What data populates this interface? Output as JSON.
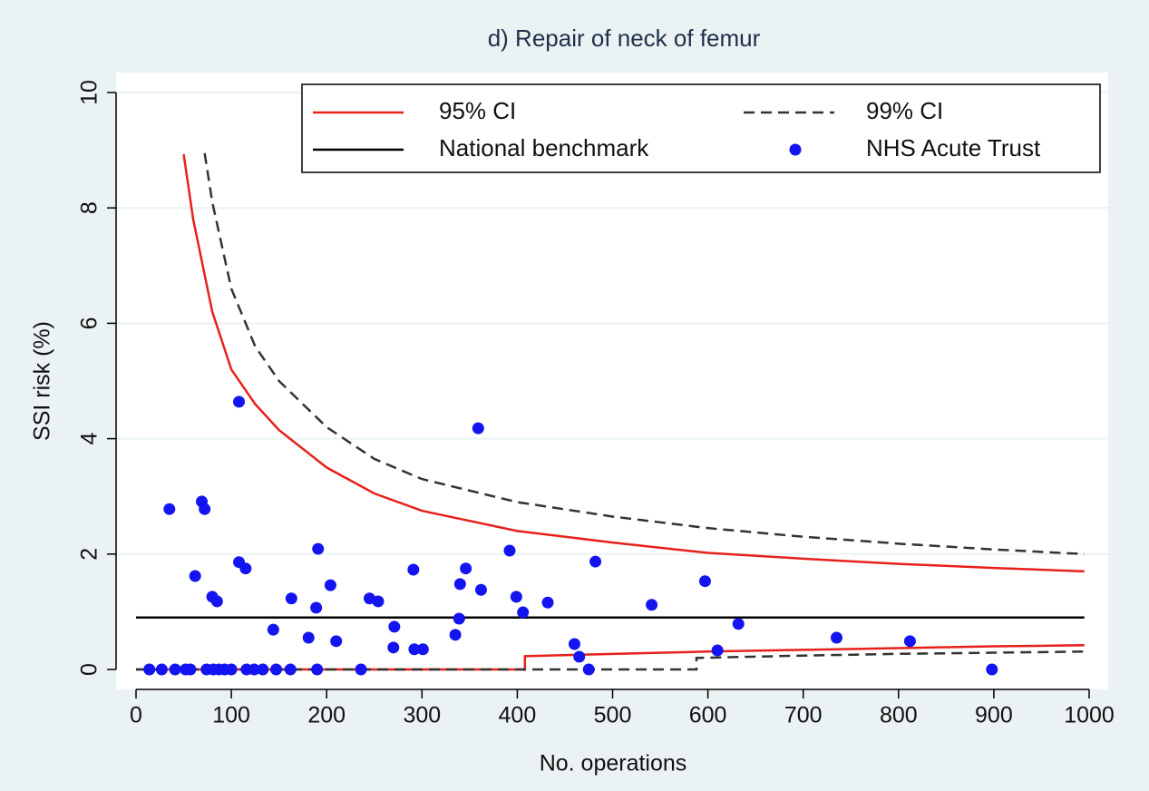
{
  "chart_data": {
    "type": "funnel",
    "title": "d) Repair of neck of femur",
    "x_label": "No. operations",
    "y_label": "SSI risk (%)",
    "xlim": [
      0,
      1000
    ],
    "ylim": [
      0,
      10
    ],
    "xticks": [
      0,
      100,
      200,
      300,
      400,
      500,
      600,
      700,
      800,
      900,
      1000
    ],
    "yticks": [
      0,
      2,
      4,
      6,
      8,
      10
    ],
    "grid": true,
    "legend": "top",
    "series": [
      {
        "name": "95% CI",
        "style": "line",
        "color": "#e8201a",
        "x": [
          50,
          60,
          70,
          80,
          100,
          125,
          150,
          200,
          250,
          300,
          400,
          500,
          600,
          700,
          800,
          900,
          995,
          null,
          0,
          408,
          408,
          500,
          600,
          700,
          800,
          900,
          995
        ],
        "values": [
          8.93,
          7.8,
          7.0,
          6.2,
          5.2,
          4.6,
          4.15,
          3.5,
          3.05,
          2.75,
          2.4,
          2.2,
          2.02,
          1.92,
          1.83,
          1.76,
          1.7,
          null,
          0,
          0,
          0.23,
          0.27,
          0.31,
          0.34,
          0.37,
          0.4,
          0.42
        ]
      },
      {
        "name": "99% CI",
        "style": "dashed",
        "color": "#333333",
        "x": [
          72,
          80,
          100,
          125,
          150,
          200,
          250,
          300,
          400,
          500,
          600,
          700,
          800,
          900,
          995,
          null,
          0,
          588,
          588,
          700,
          800,
          900,
          995
        ],
        "values": [
          8.95,
          8.1,
          6.6,
          5.6,
          5.0,
          4.2,
          3.65,
          3.3,
          2.9,
          2.65,
          2.45,
          2.3,
          2.18,
          2.08,
          2.0,
          null,
          0,
          0,
          0.2,
          0.24,
          0.27,
          0.29,
          0.31
        ]
      },
      {
        "name": "National benchmark",
        "style": "line",
        "color": "#000000",
        "x": [
          0,
          995
        ],
        "values": [
          0.9,
          0.9
        ]
      },
      {
        "name": "NHS Acute Trust",
        "style": "points",
        "color": "#1414f0",
        "x": [
          14,
          27,
          41,
          52,
          57,
          74,
          81,
          87,
          93,
          100,
          116,
          124,
          133,
          147,
          162,
          190,
          236,
          475,
          898,
          35,
          69,
          72,
          62,
          80,
          85,
          108,
          108,
          115,
          144,
          163,
          181,
          189,
          191,
          204,
          210,
          245,
          254,
          270,
          271,
          291,
          292,
          301,
          335,
          340,
          339,
          346,
          359,
          362,
          392,
          399,
          406,
          432,
          460,
          465,
          482,
          541,
          597,
          610,
          632,
          735,
          812
        ],
        "values": [
          0,
          0,
          0,
          0,
          0,
          0,
          0,
          0,
          0,
          0,
          0,
          0,
          0,
          0,
          0,
          0,
          0,
          0,
          0,
          2.78,
          2.91,
          2.78,
          1.62,
          1.26,
          1.18,
          4.64,
          1.86,
          1.75,
          0.69,
          1.23,
          0.55,
          1.07,
          2.09,
          1.46,
          0.49,
          1.23,
          1.18,
          0.38,
          0.74,
          1.73,
          0.35,
          0.35,
          0.6,
          1.48,
          0.88,
          1.75,
          4.18,
          1.38,
          2.06,
          1.26,
          0.99,
          1.16,
          0.44,
          0.22,
          1.87,
          1.12,
          1.53,
          0.33,
          0.79,
          0.55,
          0.49
        ]
      }
    ]
  }
}
